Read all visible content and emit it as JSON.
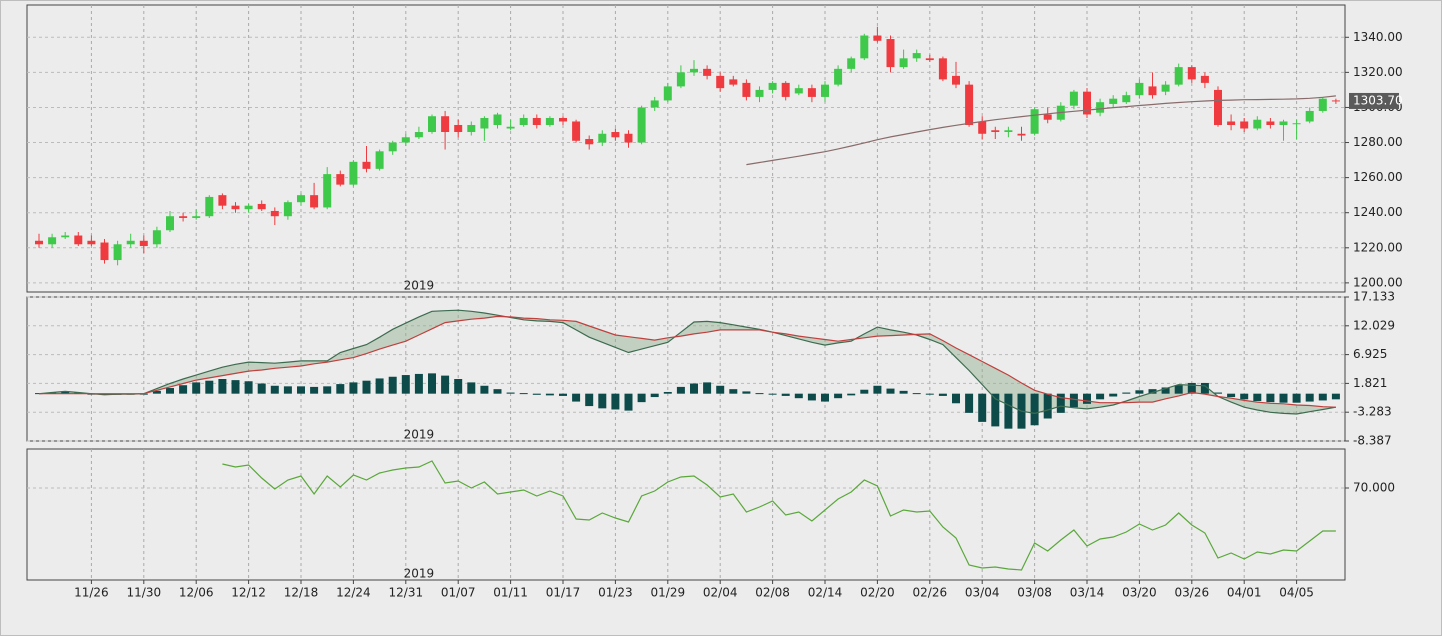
{
  "chart_data": [
    {
      "type": "candlestick",
      "year_label": "2019",
      "up_color": "#3ec94a",
      "down_color": "#ef3b3f",
      "open": [
        1224,
        1222,
        1226,
        1227,
        1224,
        1223,
        1213,
        1222,
        1224,
        1222,
        1230,
        1238,
        1237,
        1238,
        1250,
        1244,
        1242,
        1245,
        1241,
        1238,
        1246,
        1250,
        1243,
        1262,
        1256,
        1269,
        1265,
        1275,
        1280,
        1283,
        1286,
        1295,
        1290,
        1286,
        1288,
        1290,
        1288,
        1290,
        1294,
        1290,
        1294,
        1292,
        1282,
        1280,
        1286,
        1285,
        1280,
        1300,
        1304,
        1312,
        1320,
        1322,
        1318,
        1316,
        1314,
        1306,
        1310,
        1314,
        1308,
        1311,
        1306,
        1313,
        1322,
        1328,
        1341,
        1339,
        1323,
        1328,
        1328,
        1328,
        1318,
        1313,
        1292,
        1287,
        1286,
        1285,
        1285,
        1296,
        1293,
        1301,
        1309,
        1297,
        1302,
        1303,
        1307,
        1312,
        1309,
        1313,
        1323,
        1318,
        1310,
        1292,
        1292,
        1288,
        1292,
        1290,
        1291,
        1292,
        1298,
        1304
      ],
      "high": [
        1228,
        1228,
        1229,
        1229,
        1227,
        1225,
        1224,
        1228,
        1227,
        1232,
        1241,
        1240,
        1242,
        1250,
        1251,
        1246,
        1245,
        1247,
        1243,
        1247,
        1251,
        1257,
        1266,
        1264,
        1270,
        1278,
        1276,
        1281,
        1285,
        1289,
        1296,
        1298,
        1293,
        1292,
        1295,
        1297,
        1293,
        1296,
        1296,
        1295,
        1295,
        1293,
        1284,
        1287,
        1288,
        1287,
        1301,
        1306,
        1314,
        1324,
        1327,
        1324,
        1320,
        1318,
        1316,
        1312,
        1315,
        1315,
        1313,
        1313,
        1315,
        1324,
        1329,
        1342,
        1346,
        1341,
        1333,
        1333,
        1330,
        1329,
        1326,
        1315,
        1295,
        1289,
        1289,
        1289,
        1300,
        1300,
        1303,
        1310,
        1311,
        1305,
        1307,
        1309,
        1316,
        1320,
        1315,
        1325,
        1324,
        1320,
        1312,
        1296,
        1294,
        1295,
        1294,
        1293,
        1293,
        1300,
        1306,
        1305
      ],
      "low": [
        1220,
        1220,
        1225,
        1221,
        1221,
        1211,
        1210,
        1220,
        1217,
        1220,
        1229,
        1235,
        1236,
        1237,
        1242,
        1240,
        1240,
        1241,
        1233,
        1236,
        1244,
        1242,
        1242,
        1255,
        1255,
        1263,
        1264,
        1273,
        1278,
        1282,
        1285,
        1276,
        1283,
        1284,
        1281,
        1288,
        1287,
        1289,
        1288,
        1289,
        1290,
        1280,
        1276,
        1278,
        1281,
        1277,
        1279,
        1298,
        1303,
        1311,
        1318,
        1316,
        1309,
        1312,
        1304,
        1303,
        1308,
        1304,
        1307,
        1303,
        1303,
        1312,
        1320,
        1327,
        1337,
        1320,
        1322,
        1326,
        1326,
        1315,
        1311,
        1289,
        1282,
        1282,
        1283,
        1281,
        1284,
        1291,
        1292,
        1299,
        1294,
        1295,
        1300,
        1302,
        1305,
        1305,
        1307,
        1312,
        1314,
        1311,
        1289,
        1287,
        1286,
        1287,
        1288,
        1281,
        1282,
        1291,
        1297,
        1302
      ],
      "close": [
        1222,
        1226,
        1227,
        1222,
        1222,
        1213,
        1222,
        1224,
        1221,
        1230,
        1238,
        1237,
        1238,
        1249,
        1244,
        1242,
        1244,
        1242,
        1238,
        1246,
        1250,
        1243,
        1262,
        1256,
        1269,
        1265,
        1275,
        1280,
        1283,
        1286,
        1295,
        1286,
        1286,
        1290,
        1294,
        1296,
        1289,
        1294,
        1290,
        1294,
        1292,
        1281,
        1279,
        1285,
        1283,
        1280,
        1300,
        1304,
        1312,
        1320,
        1322,
        1318,
        1311,
        1313,
        1306,
        1310,
        1314,
        1306,
        1311,
        1306,
        1313,
        1322,
        1328,
        1341,
        1338,
        1323,
        1328,
        1331,
        1327,
        1316,
        1313,
        1290,
        1285,
        1286,
        1287,
        1284,
        1299,
        1293,
        1301,
        1309,
        1296,
        1303,
        1305,
        1307,
        1314,
        1307,
        1313,
        1323,
        1316,
        1314,
        1290,
        1290,
        1288,
        1293,
        1290,
        1292,
        1291,
        1298,
        1305,
        1303.7
      ],
      "series": [
        {
          "color": "#8a6b6b",
          "values": [
            null,
            null,
            null,
            null,
            null,
            null,
            null,
            null,
            null,
            null,
            null,
            null,
            null,
            null,
            null,
            null,
            null,
            null,
            null,
            null,
            null,
            null,
            null,
            null,
            null,
            null,
            null,
            null,
            null,
            null,
            null,
            null,
            null,
            null,
            null,
            null,
            null,
            null,
            null,
            null,
            null,
            null,
            null,
            null,
            null,
            null,
            null,
            null,
            null,
            null,
            null,
            null,
            null,
            null,
            1267.4,
            1268.6,
            1269.8,
            1271.0,
            1272.2,
            1273.5,
            1274.8,
            1276.4,
            1278.0,
            1279.8,
            1281.6,
            1283.2,
            1284.6,
            1286.0,
            1287.4,
            1288.6,
            1289.8,
            1290.9,
            1292.0,
            1293.0,
            1293.9,
            1294.8,
            1295.6,
            1296.4,
            1297.1,
            1297.8,
            1298.5,
            1299.2,
            1299.9,
            1300.5,
            1301.1,
            1301.7,
            1302.3,
            1302.8,
            1303.3,
            1303.7,
            1304.0,
            1304.2,
            1304.4,
            1304.5,
            1304.6,
            1304.7,
            1304.9,
            1305.2,
            1305.8,
            1306.6
          ]
        }
      ],
      "last_label": {
        "value": 1303.7,
        "label": "1303.70"
      },
      "ylim": [
        1194.8,
        1358.4
      ],
      "yticks": [
        {
          "value": 1200,
          "label": "1200.00"
        },
        {
          "value": 1220,
          "label": "1220.00"
        },
        {
          "value": 1240,
          "label": "1240.00"
        },
        {
          "value": 1260,
          "label": "1260.00"
        },
        {
          "value": 1280,
          "label": "1280.00"
        },
        {
          "value": 1300,
          "label": "1300.00"
        },
        {
          "value": 1320,
          "label": "1320.00"
        },
        {
          "value": 1340,
          "label": "1340.00"
        }
      ],
      "grid": true
    },
    {
      "type": "macd",
      "year_label": "2019",
      "histogram": {
        "color": "#0d4b4b",
        "values": [
          0.1,
          0.2,
          0.3,
          0.2,
          -0.1,
          -0.2,
          -0.2,
          -0.1,
          0,
          0.5,
          1.0,
          1.5,
          2.0,
          2.3,
          2.6,
          2.4,
          2.2,
          1.8,
          1.4,
          1.3,
          1.3,
          1.2,
          1.3,
          1.7,
          2.0,
          2.3,
          2.7,
          3.0,
          3.3,
          3.5,
          3.6,
          3.2,
          2.6,
          2.0,
          1.4,
          0.8,
          0.2,
          0.1,
          -0.2,
          -0.3,
          -0.4,
          -1.4,
          -2.2,
          -2.6,
          -2.8,
          -3.0,
          -1.5,
          -0.6,
          0.3,
          1.2,
          1.8,
          2.0,
          1.4,
          0.8,
          0.4,
          0.1,
          -0.1,
          -0.4,
          -0.8,
          -1.2,
          -1.4,
          -0.8,
          -0.3,
          0.7,
          1.4,
          0.9,
          0.5,
          0.1,
          -0.1,
          -0.4,
          -1.7,
          -3.4,
          -5.0,
          -5.8,
          -6.2,
          -6.2,
          -5.6,
          -4.4,
          -3.4,
          -2.4,
          -1.8,
          -1.0,
          -0.5,
          0.2,
          0.6,
          0.8,
          1.1,
          1.5,
          1.9,
          1.9,
          0.2,
          -0.6,
          -1.0,
          -1.3,
          -1.5,
          -1.6,
          -1.6,
          -1.4,
          -1.2,
          -1.0
        ]
      },
      "series": [
        {
          "color": "#3d6b4f",
          "values": [
            0,
            0.2,
            0.4,
            0.2,
            0,
            -0.2,
            -0.1,
            -0.1,
            0,
            0.9,
            1.8,
            2.6,
            3.3,
            4.0,
            4.7,
            5.2,
            5.6,
            5.5,
            5.4,
            5.6,
            5.8,
            5.8,
            5.8,
            7.3,
            8.0,
            8.7,
            10.0,
            11.4,
            12.5,
            13.6,
            14.6,
            14.7,
            14.8,
            14.6,
            14.3,
            13.9,
            13.5,
            13.1,
            12.9,
            12.8,
            12.6,
            11.3,
            10.0,
            9.1,
            8.2,
            7.3,
            7.9,
            8.5,
            9.1,
            10.9,
            12.7,
            12.8,
            12.6,
            12.2,
            11.8,
            11.4,
            10.9,
            10.3,
            9.7,
            9.1,
            8.6,
            9.0,
            9.3,
            10.6,
            11.8,
            11.3,
            10.9,
            10.4,
            9.6,
            8.7,
            6.4,
            4.1,
            1.6,
            -0.9,
            -2.0,
            -3.1,
            -3.5,
            -2.9,
            -2.2,
            -2.5,
            -2.7,
            -2.4,
            -2.0,
            -1.3,
            -0.5,
            0.2,
            0.9,
            1.6,
            1.5,
            1.4,
            -0.5,
            -1.5,
            -2.4,
            -2.9,
            -3.3,
            -3.5,
            -3.6,
            -3.2,
            -2.8,
            -2.4
          ]
        },
        {
          "color": "#c0403e",
          "values": [
            0,
            0,
            0,
            0,
            0,
            0,
            0,
            0,
            0,
            0.6,
            1.2,
            1.8,
            2.4,
            2.8,
            3.2,
            3.6,
            4.0,
            4.2,
            4.5,
            4.7,
            4.9,
            5.3,
            5.6,
            6.0,
            6.4,
            7.1,
            7.9,
            8.6,
            9.3,
            10.4,
            11.5,
            12.6,
            12.9,
            13.2,
            13.4,
            13.7,
            13.6,
            13.4,
            13.3,
            13.1,
            13.0,
            12.8,
            12.0,
            11.2,
            10.4,
            10.1,
            9.8,
            9.5,
            9.9,
            10.2,
            10.6,
            10.9,
            11.3,
            11.3,
            11.3,
            11.3,
            10.9,
            10.6,
            10.2,
            9.9,
            9.6,
            9.3,
            9.6,
            9.9,
            10.2,
            10.3,
            10.4,
            10.5,
            10.6,
            9.4,
            8.1,
            6.9,
            5.7,
            4.5,
            3.3,
            1.9,
            0.6,
            -0.1,
            -0.7,
            -1.0,
            -1.3,
            -1.6,
            -1.6,
            -1.6,
            -1.5,
            -1.5,
            -0.9,
            -0.4,
            0.2,
            -0.1,
            -0.5,
            -0.8,
            -1.2,
            -1.5,
            -1.7,
            -1.8,
            -2.0,
            -2.1,
            -2.3,
            -2.4
          ]
        }
      ],
      "band_color": "#8fb08f",
      "ylim": [
        -8.387,
        17.133
      ],
      "yticks": [
        -8.387,
        -3.283,
        1.821,
        6.925,
        12.029,
        17.133
      ],
      "grid": true
    },
    {
      "type": "line",
      "year_label": "2019",
      "categories": [
        null,
        null,
        null,
        null,
        "11/26",
        null,
        null,
        null,
        "11/30",
        null,
        null,
        null,
        "12/06",
        null,
        null,
        null,
        "12/12",
        null,
        null,
        null,
        "12/18",
        null,
        null,
        null,
        "12/24",
        null,
        null,
        null,
        "12/31",
        null,
        null,
        null,
        "01/07",
        null,
        null,
        null,
        "01/11",
        null,
        null,
        null,
        "01/17",
        null,
        null,
        null,
        "01/23",
        null,
        null,
        null,
        "01/29",
        null,
        null,
        null,
        "02/04",
        null,
        null,
        null,
        "02/08",
        null,
        null,
        null,
        "02/14",
        null,
        null,
        null,
        "02/20",
        null,
        null,
        null,
        "02/26",
        null,
        null,
        null,
        "03/04",
        null,
        null,
        null,
        "03/08",
        null,
        null,
        null,
        "03/14",
        null,
        null,
        null,
        "03/20",
        null,
        null,
        null,
        "03/26",
        null,
        null,
        null,
        "04/01",
        null,
        null,
        null,
        "04/05",
        null,
        null,
        null
      ],
      "series": [
        {
          "color": "#5aa83a",
          "values": [
            null,
            null,
            null,
            null,
            null,
            null,
            null,
            null,
            null,
            null,
            null,
            null,
            null,
            null,
            79.6,
            78.4,
            79.2,
            74,
            69.6,
            73.2,
            74.8,
            67.6,
            74.8,
            70.4,
            75.2,
            73.2,
            76,
            77.2,
            78,
            78.4,
            80.8,
            72,
            72.8,
            70,
            72.4,
            67.6,
            68.4,
            69.2,
            66.8,
            68.8,
            66.8,
            57.6,
            57.2,
            60,
            58,
            56.4,
            66.8,
            68.8,
            72.4,
            74.4,
            74.8,
            71.2,
            66.4,
            67.6,
            60.4,
            62.4,
            64.8,
            59.2,
            60.4,
            56.8,
            61.2,
            65.6,
            68.4,
            73.2,
            70.8,
            58.8,
            61.2,
            60.4,
            60.8,
            54.4,
            50,
            39.2,
            38,
            38.4,
            37.6,
            37.2,
            48,
            44.8,
            49.2,
            53.2,
            46.8,
            49.6,
            50.4,
            52.4,
            55.6,
            53.2,
            55.2,
            60,
            55.2,
            52,
            42,
            44,
            41.6,
            44.4,
            43.6,
            45.2,
            44.8,
            48.8,
            52.8,
            52.8
          ]
        }
      ],
      "ylim": [
        33.2,
        85.6
      ],
      "yticks": [
        {
          "value": 70,
          "label": "70.000"
        }
      ],
      "grid": true
    }
  ]
}
